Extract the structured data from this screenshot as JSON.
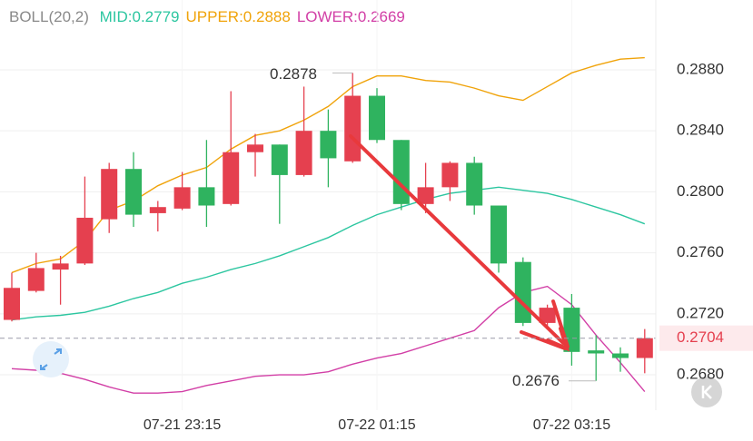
{
  "chart_data": {
    "type": "candlestick",
    "indicator": "BOLL(20,2)",
    "categories": [
      null,
      null,
      null,
      null,
      null,
      null,
      null,
      "07-21 23:15",
      null,
      null,
      null,
      null,
      null,
      null,
      null,
      "07-22 01:15",
      null,
      null,
      null,
      null,
      null,
      null,
      null,
      "07-22 03:15",
      null,
      null,
      null
    ],
    "open": [
      0.2716,
      0.2735,
      0.2749,
      0.2753,
      0.2782,
      0.2815,
      0.2786,
      0.2789,
      0.2803,
      0.2792,
      0.2826,
      0.2831,
      0.2811,
      0.284,
      0.282,
      0.2863,
      0.2834,
      0.2792,
      0.2803,
      0.2819,
      0.2791,
      0.2754,
      0.2714,
      0.2724,
      0.2696,
      0.2694,
      0.2691
    ],
    "high": [
      0.2747,
      0.276,
      0.2758,
      0.281,
      0.2819,
      0.2826,
      0.2794,
      0.2813,
      0.2834,
      0.2866,
      0.2838,
      0.2831,
      0.2869,
      0.2854,
      0.2878,
      0.2868,
      0.2834,
      0.2819,
      0.282,
      0.2823,
      0.2791,
      0.2757,
      0.2726,
      0.2733,
      0.2706,
      0.2698,
      0.271
    ],
    "low": [
      0.2715,
      0.2734,
      0.2726,
      0.2752,
      0.2773,
      0.2777,
      0.2774,
      0.2788,
      0.2777,
      0.2791,
      0.281,
      0.2779,
      0.281,
      0.2803,
      0.2819,
      0.2832,
      0.2788,
      0.2786,
      0.2794,
      0.2785,
      0.2747,
      0.2712,
      0.2712,
      0.2686,
      0.2676,
      0.2682,
      0.2681
    ],
    "close": [
      0.2737,
      0.275,
      0.2753,
      0.2783,
      0.2815,
      0.2785,
      0.279,
      0.2803,
      0.2791,
      0.2826,
      0.2831,
      0.2811,
      0.284,
      0.2822,
      0.2863,
      0.2834,
      0.2792,
      0.2803,
      0.2819,
      0.2791,
      0.2753,
      0.2714,
      0.2724,
      0.2695,
      0.2694,
      0.2691,
      0.2704
    ],
    "up_color": "#e5404f",
    "down_color": "#2fb35f",
    "series": [
      {
        "name": "MID:0.2779",
        "color": "#2cc6a0",
        "values": [
          0.2716,
          0.2718,
          0.2719,
          0.2721,
          0.2725,
          0.273,
          0.2734,
          0.274,
          0.2744,
          0.2749,
          0.2753,
          0.2758,
          0.2764,
          0.277,
          0.2778,
          0.2785,
          0.279,
          0.2795,
          0.2799,
          0.2801,
          0.2803,
          0.2801,
          0.2799,
          0.2795,
          0.279,
          0.2785,
          0.2779
        ]
      },
      {
        "name": "UPPER:0.2888",
        "color": "#f0a30a",
        "values": [
          0.2747,
          0.2753,
          0.2756,
          0.2768,
          0.2788,
          0.2794,
          0.2804,
          0.2811,
          0.2816,
          0.2828,
          0.2837,
          0.284,
          0.2847,
          0.2856,
          0.2869,
          0.2876,
          0.2876,
          0.2873,
          0.2872,
          0.2868,
          0.2863,
          0.286,
          0.2869,
          0.2878,
          0.2883,
          0.2887,
          0.2888
        ]
      },
      {
        "name": "LOWER:0.2669",
        "color": "#d23fa6",
        "values": [
          0.2684,
          0.2683,
          0.2681,
          0.2677,
          0.2672,
          0.2668,
          0.2668,
          0.2669,
          0.2673,
          0.2676,
          0.2679,
          0.268,
          0.268,
          0.2682,
          0.2687,
          0.2691,
          0.2694,
          0.2699,
          0.2704,
          0.2709,
          0.2724,
          0.2734,
          0.2738,
          0.2726,
          0.2706,
          0.2688,
          0.2669
        ]
      }
    ],
    "ylim": [
      0.2658,
      0.2902
    ],
    "yticks": [
      {
        "value": 0.268,
        "label": "0.2680"
      },
      {
        "value": 0.272,
        "label": "0.2720"
      },
      {
        "value": 0.276,
        "label": "0.2760"
      },
      {
        "value": 0.28,
        "label": "0.2800"
      },
      {
        "value": 0.284,
        "label": "0.2840"
      },
      {
        "value": 0.288,
        "label": "0.2880"
      }
    ],
    "grid": true,
    "last_price": 0.2704,
    "max_label": 0.2878,
    "min_label": 0.2676
  }
}
